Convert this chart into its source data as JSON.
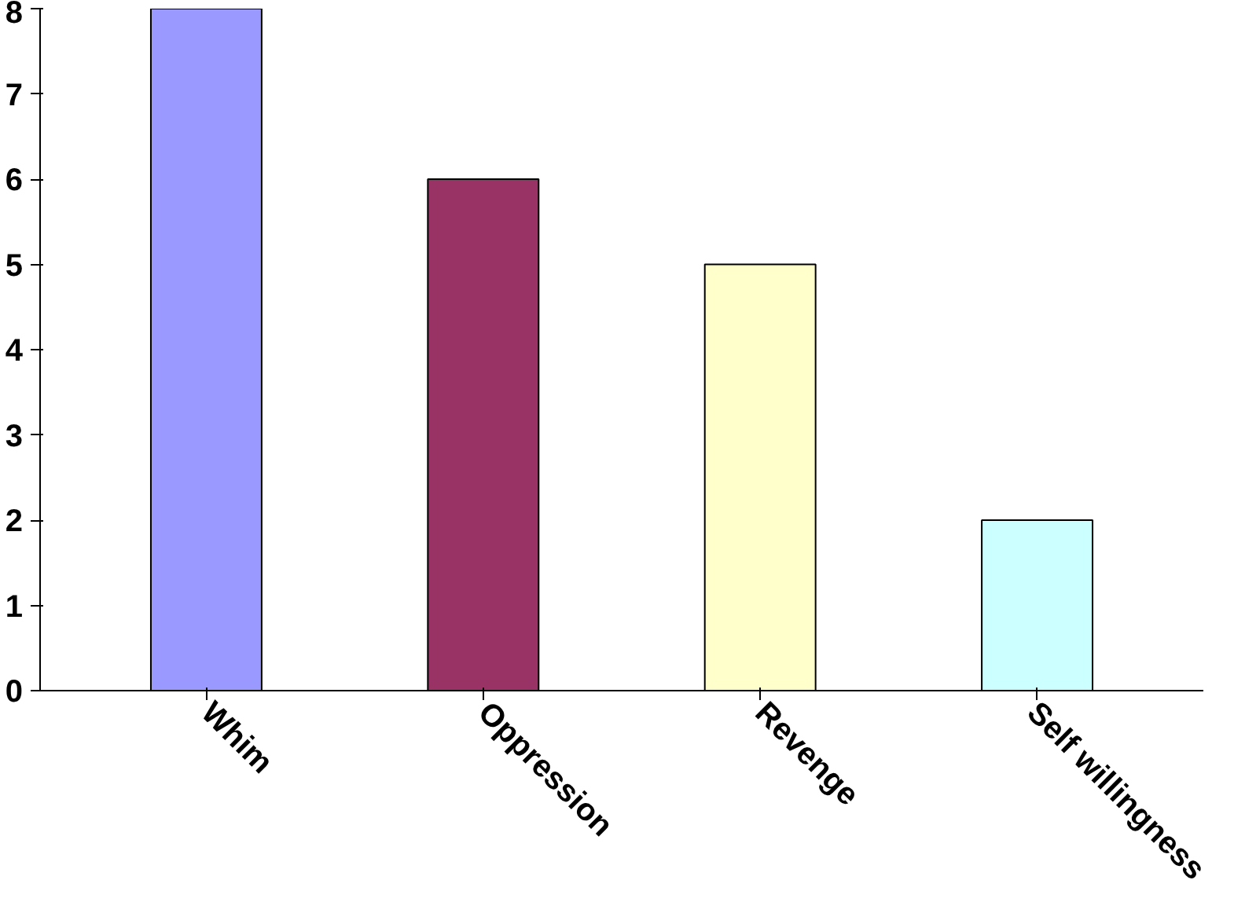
{
  "chart_data": {
    "type": "bar",
    "categories": [
      "Whim",
      "Oppression",
      "Revenge",
      "Self willingness"
    ],
    "values": [
      8,
      6,
      5,
      2
    ],
    "colors": [
      "#9999ff",
      "#993366",
      "#ffffcc",
      "#ccffff"
    ],
    "ylim": [
      0,
      8
    ],
    "yticks": [
      0,
      1,
      2,
      3,
      4,
      5,
      6,
      7,
      8
    ],
    "grid": false
  }
}
